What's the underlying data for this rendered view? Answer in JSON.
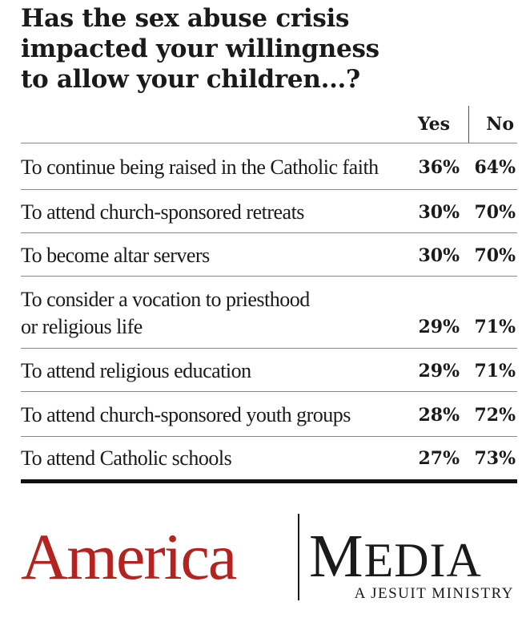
{
  "title_lines": [
    "Has the sex abuse crisis",
    "impacted your willingness",
    "to allow your children...?"
  ],
  "chart_data": {
    "type": "table",
    "title": "Has the sex abuse crisis impacted your willingness to allow your children...?",
    "columns": [
      "Yes",
      "No"
    ],
    "rows": [
      {
        "label": [
          "To continue being raised in the Catholic faith"
        ],
        "yes": "36%",
        "no": "64%"
      },
      {
        "label": [
          "To attend church-sponsored retreats"
        ],
        "yes": "30%",
        "no": "70%"
      },
      {
        "label": [
          "To become altar servers"
        ],
        "yes": "30%",
        "no": "70%"
      },
      {
        "label": [
          "To consider a vocation to priesthood",
          "or religious life"
        ],
        "yes": "29%",
        "no": "71%"
      },
      {
        "label": [
          "To attend religious education"
        ],
        "yes": "29%",
        "no": "71%"
      },
      {
        "label": [
          "To attend church-sponsored youth groups"
        ],
        "yes": "28%",
        "no": "72%"
      },
      {
        "label": [
          "To attend Catholic schools"
        ],
        "yes": "27%",
        "no": "73%"
      }
    ]
  },
  "logo": {
    "america": "America",
    "media": "MEDIA",
    "tagline": "A JESUIT MINISTRY",
    "america_color": "#b4231f"
  }
}
